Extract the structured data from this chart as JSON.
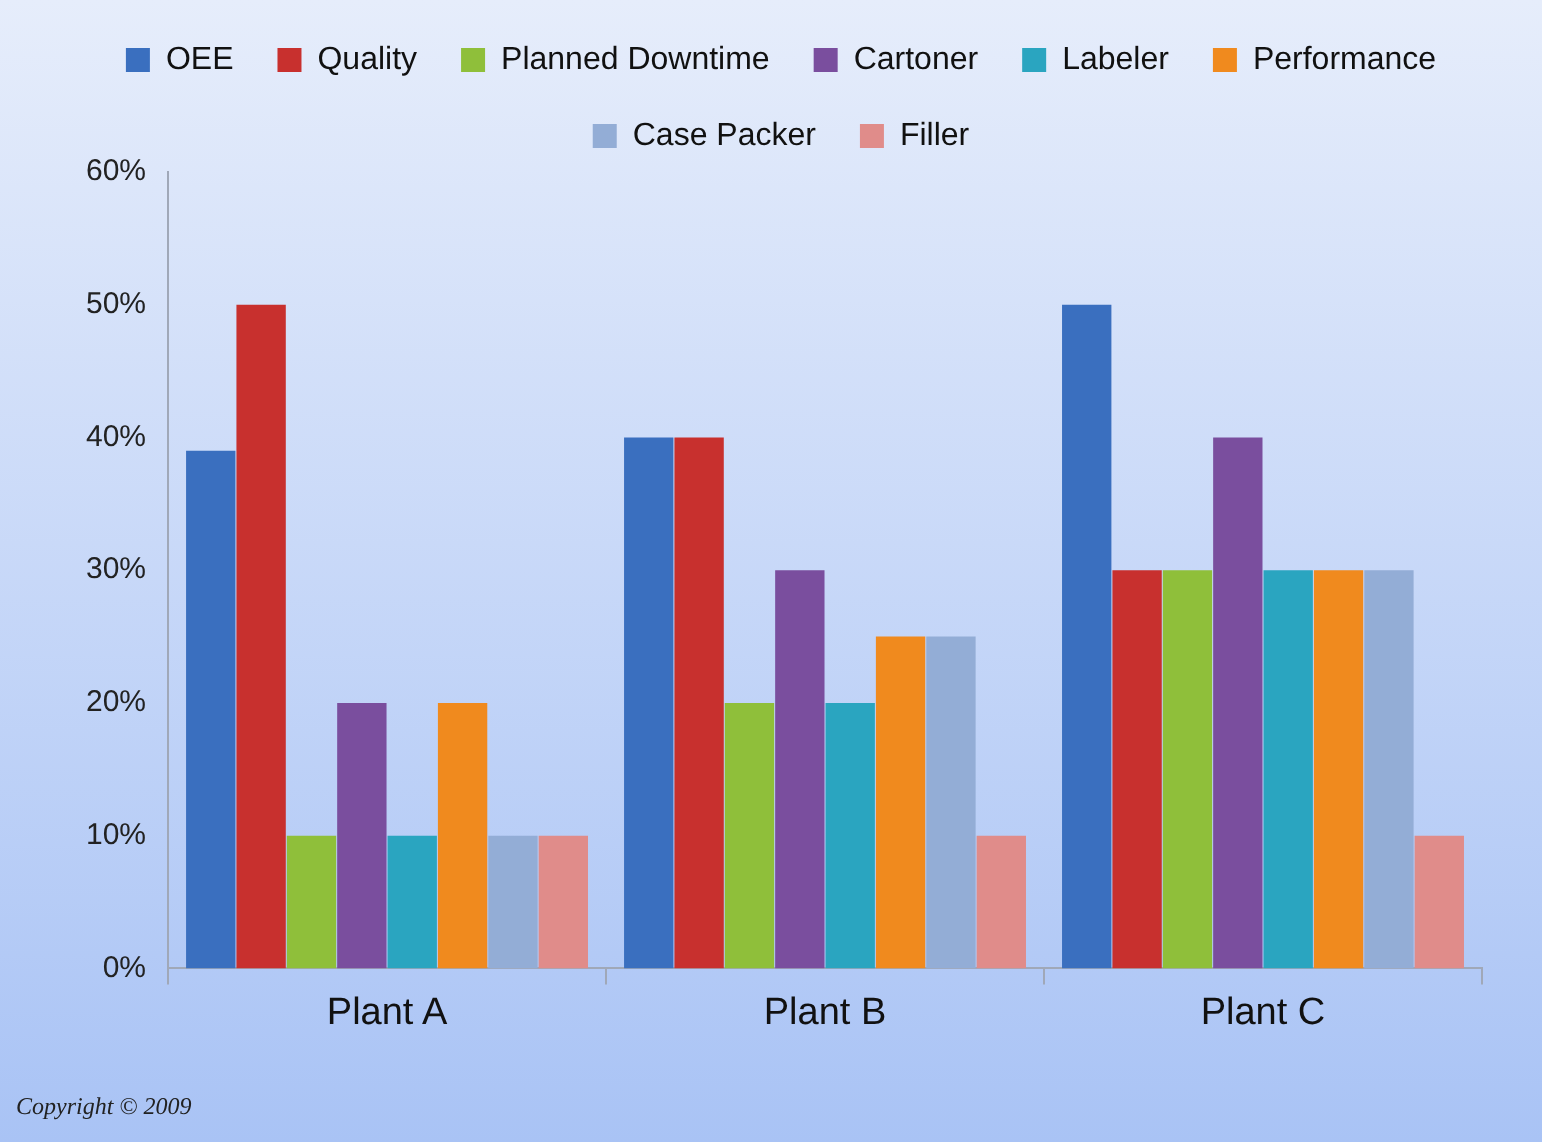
{
  "chart_data": {
    "type": "bar",
    "categories": [
      "Plant A",
      "Plant B",
      "Plant C"
    ],
    "series": [
      {
        "name": "OEE",
        "color": "#3a6fbf",
        "values": [
          39,
          40,
          50
        ]
      },
      {
        "name": "Quality",
        "color": "#c8302e",
        "values": [
          50,
          40,
          30
        ]
      },
      {
        "name": "Planned Downtime",
        "color": "#8fbf3a",
        "values": [
          10,
          20,
          30
        ]
      },
      {
        "name": "Cartoner",
        "color": "#7a4e9e",
        "values": [
          20,
          30,
          40
        ]
      },
      {
        "name": "Labeler",
        "color": "#2aa5c0",
        "values": [
          10,
          20,
          30
        ]
      },
      {
        "name": "Performance",
        "color": "#f08a1e",
        "values": [
          20,
          25,
          30
        ]
      },
      {
        "name": "Case Packer",
        "color": "#93add6",
        "values": [
          10,
          25,
          30
        ]
      },
      {
        "name": "Filler",
        "color": "#e08c8a",
        "values": [
          10,
          10,
          10
        ]
      }
    ],
    "ylim": [
      0,
      60
    ],
    "yticks": [
      {
        "value": 0,
        "label": "0%"
      },
      {
        "value": 10,
        "label": "10%"
      },
      {
        "value": 20,
        "label": "20%"
      },
      {
        "value": 30,
        "label": "30%"
      },
      {
        "value": 40,
        "label": "40%"
      },
      {
        "value": 50,
        "label": "50%"
      },
      {
        "value": 60,
        "label": "60%"
      }
    ],
    "grid": false,
    "legend": "top",
    "annotations": [
      "Copyright © 2009"
    ]
  }
}
